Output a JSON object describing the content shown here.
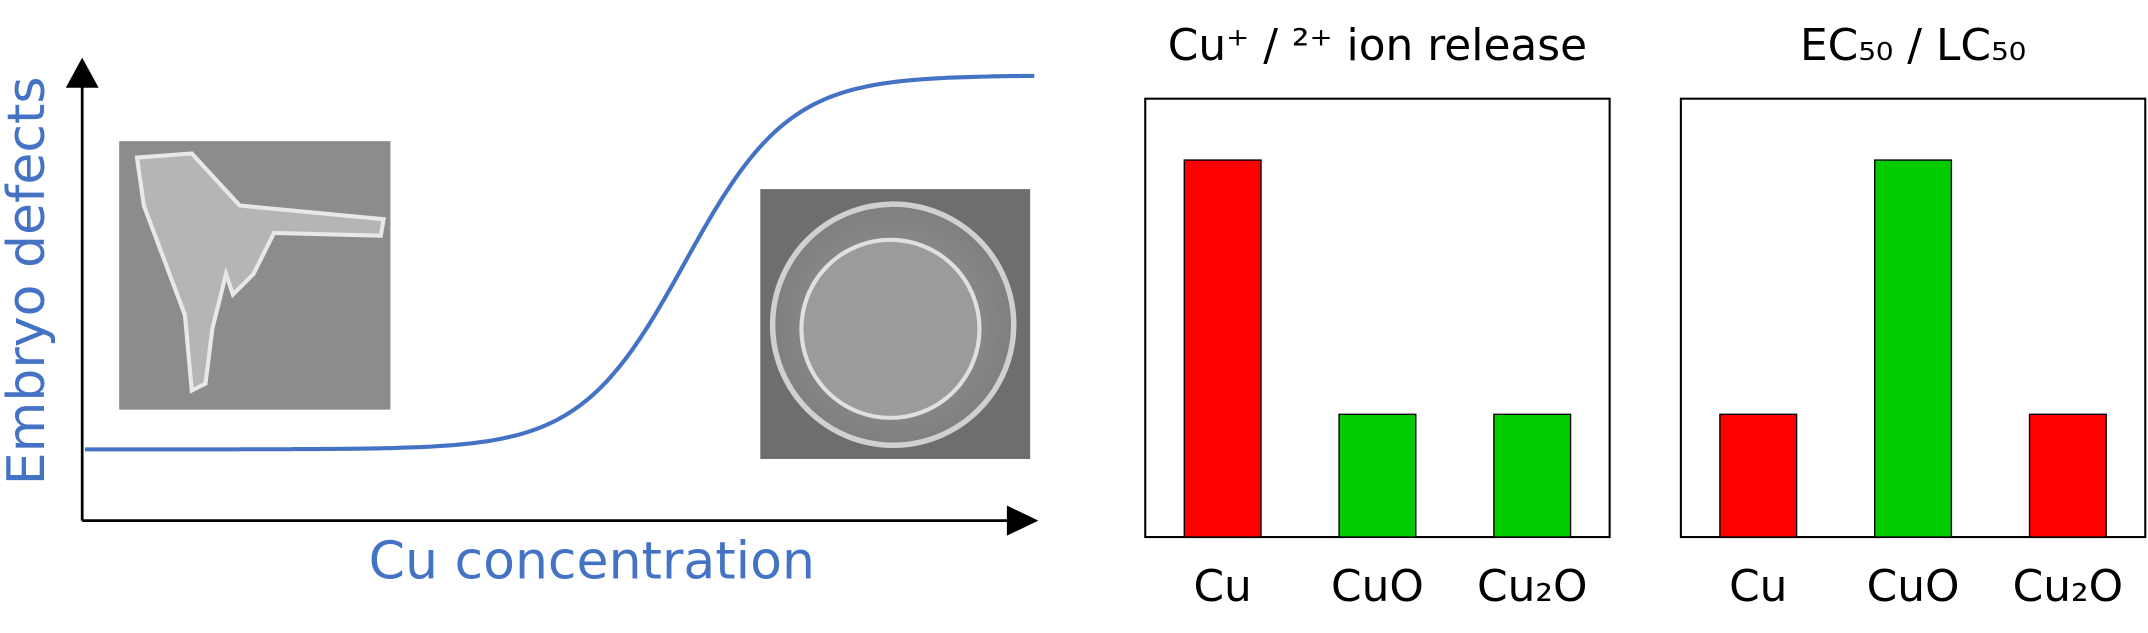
{
  "chart_data": [
    {
      "type": "line",
      "x_label": "Cu concentration",
      "y_label": "Embryo defects",
      "color": "#4472c4"
    },
    {
      "type": "bar",
      "title": "Cu⁺ / ²⁺ ion release",
      "categories": [
        "Cu",
        "CuO",
        "Cu₂O"
      ],
      "values": [
        86,
        28,
        28
      ],
      "colors": [
        "#ff0000",
        "#00cc00",
        "#00cc00"
      ],
      "ylim": [
        0,
        100
      ]
    },
    {
      "type": "bar",
      "title": "EC₅₀ / LC₅₀",
      "categories": [
        "Cu",
        "CuO",
        "Cu₂O"
      ],
      "values": [
        28,
        86,
        28
      ],
      "colors": [
        "#ff0000",
        "#00cc00",
        "#ff0000"
      ],
      "ylim": [
        0,
        100
      ]
    }
  ]
}
